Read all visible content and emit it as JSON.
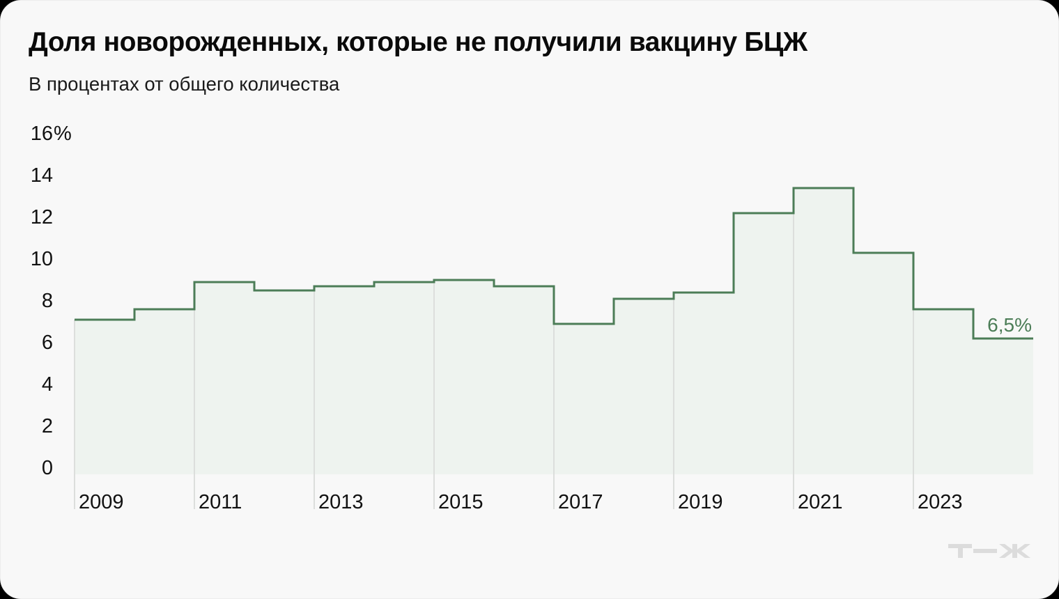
{
  "header": {
    "title": "Доля новорожденных, которые не получили вакцину БЦЖ",
    "subtitle": "В процентах от общего количества"
  },
  "colors": {
    "background": "#f8f8f8",
    "line": "#4c7d57",
    "fill": "#eef3ef",
    "grid": "#dcdedc",
    "logo": "#dcdcdc",
    "text": "#111111"
  },
  "logo": {
    "text": "т—ж"
  },
  "chart_data": {
    "type": "line",
    "style": "step-area",
    "title": "Доля новорожденных, которые не получили вакцину БЦЖ",
    "subtitle": "В процентах от общего количества",
    "xlabel": "",
    "ylabel": "%",
    "x": [
      2009,
      2010,
      2011,
      2012,
      2013,
      2014,
      2015,
      2016,
      2017,
      2018,
      2019,
      2020,
      2021,
      2022,
      2023,
      2024
    ],
    "series": [
      {
        "name": "Доля новорожденных без вакцины БЦЖ, %",
        "values": [
          7.4,
          7.9,
          9.2,
          8.8,
          9.0,
          9.2,
          9.3,
          9.0,
          7.2,
          8.4,
          8.7,
          12.5,
          13.7,
          10.6,
          7.9,
          6.5
        ]
      }
    ],
    "ylim": [
      0,
      16
    ],
    "yticks": [
      {
        "value": 0,
        "label": "0"
      },
      {
        "value": 2,
        "label": "2"
      },
      {
        "value": 4,
        "label": "4"
      },
      {
        "value": 6,
        "label": "6"
      },
      {
        "value": 8,
        "label": "8"
      },
      {
        "value": 10,
        "label": "10"
      },
      {
        "value": 12,
        "label": "12"
      },
      {
        "value": 14,
        "label": "14"
      },
      {
        "value": 16,
        "label": "16",
        "suffix": "%"
      }
    ],
    "xticks": [
      "2009",
      "2011",
      "2013",
      "2015",
      "2017",
      "2019",
      "2021",
      "2023"
    ],
    "annotations": [
      {
        "x": 2024,
        "value": 6.5,
        "label": "6,5%"
      }
    ],
    "grid": {
      "horizontal": false,
      "vertical": true
    },
    "legend": "none"
  }
}
